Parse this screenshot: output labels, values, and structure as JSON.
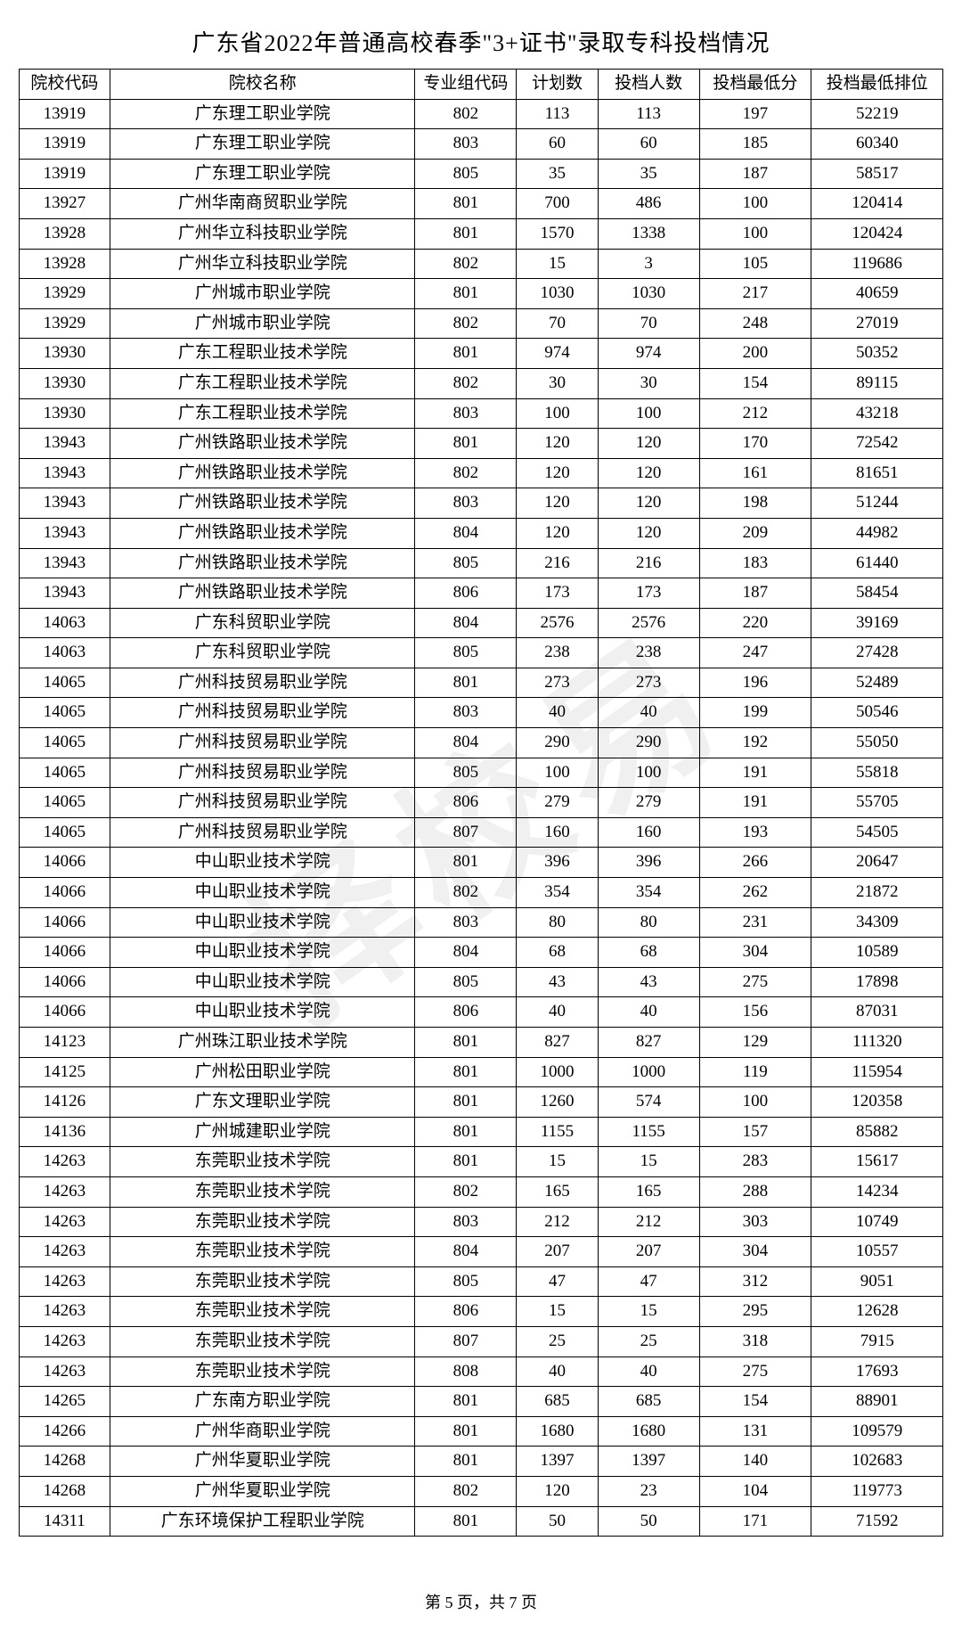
{
  "title": "广东省2022年普通高校春季\"3+证书\"录取专科投档情况",
  "watermark": "择校易",
  "footer_prefix": "第 ",
  "footer_page": "5",
  "footer_mid": " 页，共 ",
  "footer_total": "7",
  "footer_suffix": " 页",
  "table": {
    "headers": [
      "院校代码",
      "院校名称",
      "专业组代码",
      "计划数",
      "投档人数",
      "投档最低分",
      "投档最低排位"
    ],
    "col_widths_class": [
      "col-code",
      "col-name",
      "col-group",
      "col-plan",
      "col-count",
      "col-min",
      "col-rank"
    ],
    "rows": [
      [
        "13919",
        "广东理工职业学院",
        "802",
        "113",
        "113",
        "197",
        "52219"
      ],
      [
        "13919",
        "广东理工职业学院",
        "803",
        "60",
        "60",
        "185",
        "60340"
      ],
      [
        "13919",
        "广东理工职业学院",
        "805",
        "35",
        "35",
        "187",
        "58517"
      ],
      [
        "13927",
        "广州华南商贸职业学院",
        "801",
        "700",
        "486",
        "100",
        "120414"
      ],
      [
        "13928",
        "广州华立科技职业学院",
        "801",
        "1570",
        "1338",
        "100",
        "120424"
      ],
      [
        "13928",
        "广州华立科技职业学院",
        "802",
        "15",
        "3",
        "105",
        "119686"
      ],
      [
        "13929",
        "广州城市职业学院",
        "801",
        "1030",
        "1030",
        "217",
        "40659"
      ],
      [
        "13929",
        "广州城市职业学院",
        "802",
        "70",
        "70",
        "248",
        "27019"
      ],
      [
        "13930",
        "广东工程职业技术学院",
        "801",
        "974",
        "974",
        "200",
        "50352"
      ],
      [
        "13930",
        "广东工程职业技术学院",
        "802",
        "30",
        "30",
        "154",
        "89115"
      ],
      [
        "13930",
        "广东工程职业技术学院",
        "803",
        "100",
        "100",
        "212",
        "43218"
      ],
      [
        "13943",
        "广州铁路职业技术学院",
        "801",
        "120",
        "120",
        "170",
        "72542"
      ],
      [
        "13943",
        "广州铁路职业技术学院",
        "802",
        "120",
        "120",
        "161",
        "81651"
      ],
      [
        "13943",
        "广州铁路职业技术学院",
        "803",
        "120",
        "120",
        "198",
        "51244"
      ],
      [
        "13943",
        "广州铁路职业技术学院",
        "804",
        "120",
        "120",
        "209",
        "44982"
      ],
      [
        "13943",
        "广州铁路职业技术学院",
        "805",
        "216",
        "216",
        "183",
        "61440"
      ],
      [
        "13943",
        "广州铁路职业技术学院",
        "806",
        "173",
        "173",
        "187",
        "58454"
      ],
      [
        "14063",
        "广东科贸职业学院",
        "804",
        "2576",
        "2576",
        "220",
        "39169"
      ],
      [
        "14063",
        "广东科贸职业学院",
        "805",
        "238",
        "238",
        "247",
        "27428"
      ],
      [
        "14065",
        "广州科技贸易职业学院",
        "801",
        "273",
        "273",
        "196",
        "52489"
      ],
      [
        "14065",
        "广州科技贸易职业学院",
        "803",
        "40",
        "40",
        "199",
        "50546"
      ],
      [
        "14065",
        "广州科技贸易职业学院",
        "804",
        "290",
        "290",
        "192",
        "55050"
      ],
      [
        "14065",
        "广州科技贸易职业学院",
        "805",
        "100",
        "100",
        "191",
        "55818"
      ],
      [
        "14065",
        "广州科技贸易职业学院",
        "806",
        "279",
        "279",
        "191",
        "55705"
      ],
      [
        "14065",
        "广州科技贸易职业学院",
        "807",
        "160",
        "160",
        "193",
        "54505"
      ],
      [
        "14066",
        "中山职业技术学院",
        "801",
        "396",
        "396",
        "266",
        "20647"
      ],
      [
        "14066",
        "中山职业技术学院",
        "802",
        "354",
        "354",
        "262",
        "21872"
      ],
      [
        "14066",
        "中山职业技术学院",
        "803",
        "80",
        "80",
        "231",
        "34309"
      ],
      [
        "14066",
        "中山职业技术学院",
        "804",
        "68",
        "68",
        "304",
        "10589"
      ],
      [
        "14066",
        "中山职业技术学院",
        "805",
        "43",
        "43",
        "275",
        "17898"
      ],
      [
        "14066",
        "中山职业技术学院",
        "806",
        "40",
        "40",
        "156",
        "87031"
      ],
      [
        "14123",
        "广州珠江职业技术学院",
        "801",
        "827",
        "827",
        "129",
        "111320"
      ],
      [
        "14125",
        "广州松田职业学院",
        "801",
        "1000",
        "1000",
        "119",
        "115954"
      ],
      [
        "14126",
        "广东文理职业学院",
        "801",
        "1260",
        "574",
        "100",
        "120358"
      ],
      [
        "14136",
        "广州城建职业学院",
        "801",
        "1155",
        "1155",
        "157",
        "85882"
      ],
      [
        "14263",
        "东莞职业技术学院",
        "801",
        "15",
        "15",
        "283",
        "15617"
      ],
      [
        "14263",
        "东莞职业技术学院",
        "802",
        "165",
        "165",
        "288",
        "14234"
      ],
      [
        "14263",
        "东莞职业技术学院",
        "803",
        "212",
        "212",
        "303",
        "10749"
      ],
      [
        "14263",
        "东莞职业技术学院",
        "804",
        "207",
        "207",
        "304",
        "10557"
      ],
      [
        "14263",
        "东莞职业技术学院",
        "805",
        "47",
        "47",
        "312",
        "9051"
      ],
      [
        "14263",
        "东莞职业技术学院",
        "806",
        "15",
        "15",
        "295",
        "12628"
      ],
      [
        "14263",
        "东莞职业技术学院",
        "807",
        "25",
        "25",
        "318",
        "7915"
      ],
      [
        "14263",
        "东莞职业技术学院",
        "808",
        "40",
        "40",
        "275",
        "17693"
      ],
      [
        "14265",
        "广东南方职业学院",
        "801",
        "685",
        "685",
        "154",
        "88901"
      ],
      [
        "14266",
        "广州华商职业学院",
        "801",
        "1680",
        "1680",
        "131",
        "109579"
      ],
      [
        "14268",
        "广州华夏职业学院",
        "801",
        "1397",
        "1397",
        "140",
        "102683"
      ],
      [
        "14268",
        "广州华夏职业学院",
        "802",
        "120",
        "23",
        "104",
        "119773"
      ],
      [
        "14311",
        "广东环境保护工程职业学院",
        "801",
        "50",
        "50",
        "171",
        "71592"
      ]
    ]
  }
}
